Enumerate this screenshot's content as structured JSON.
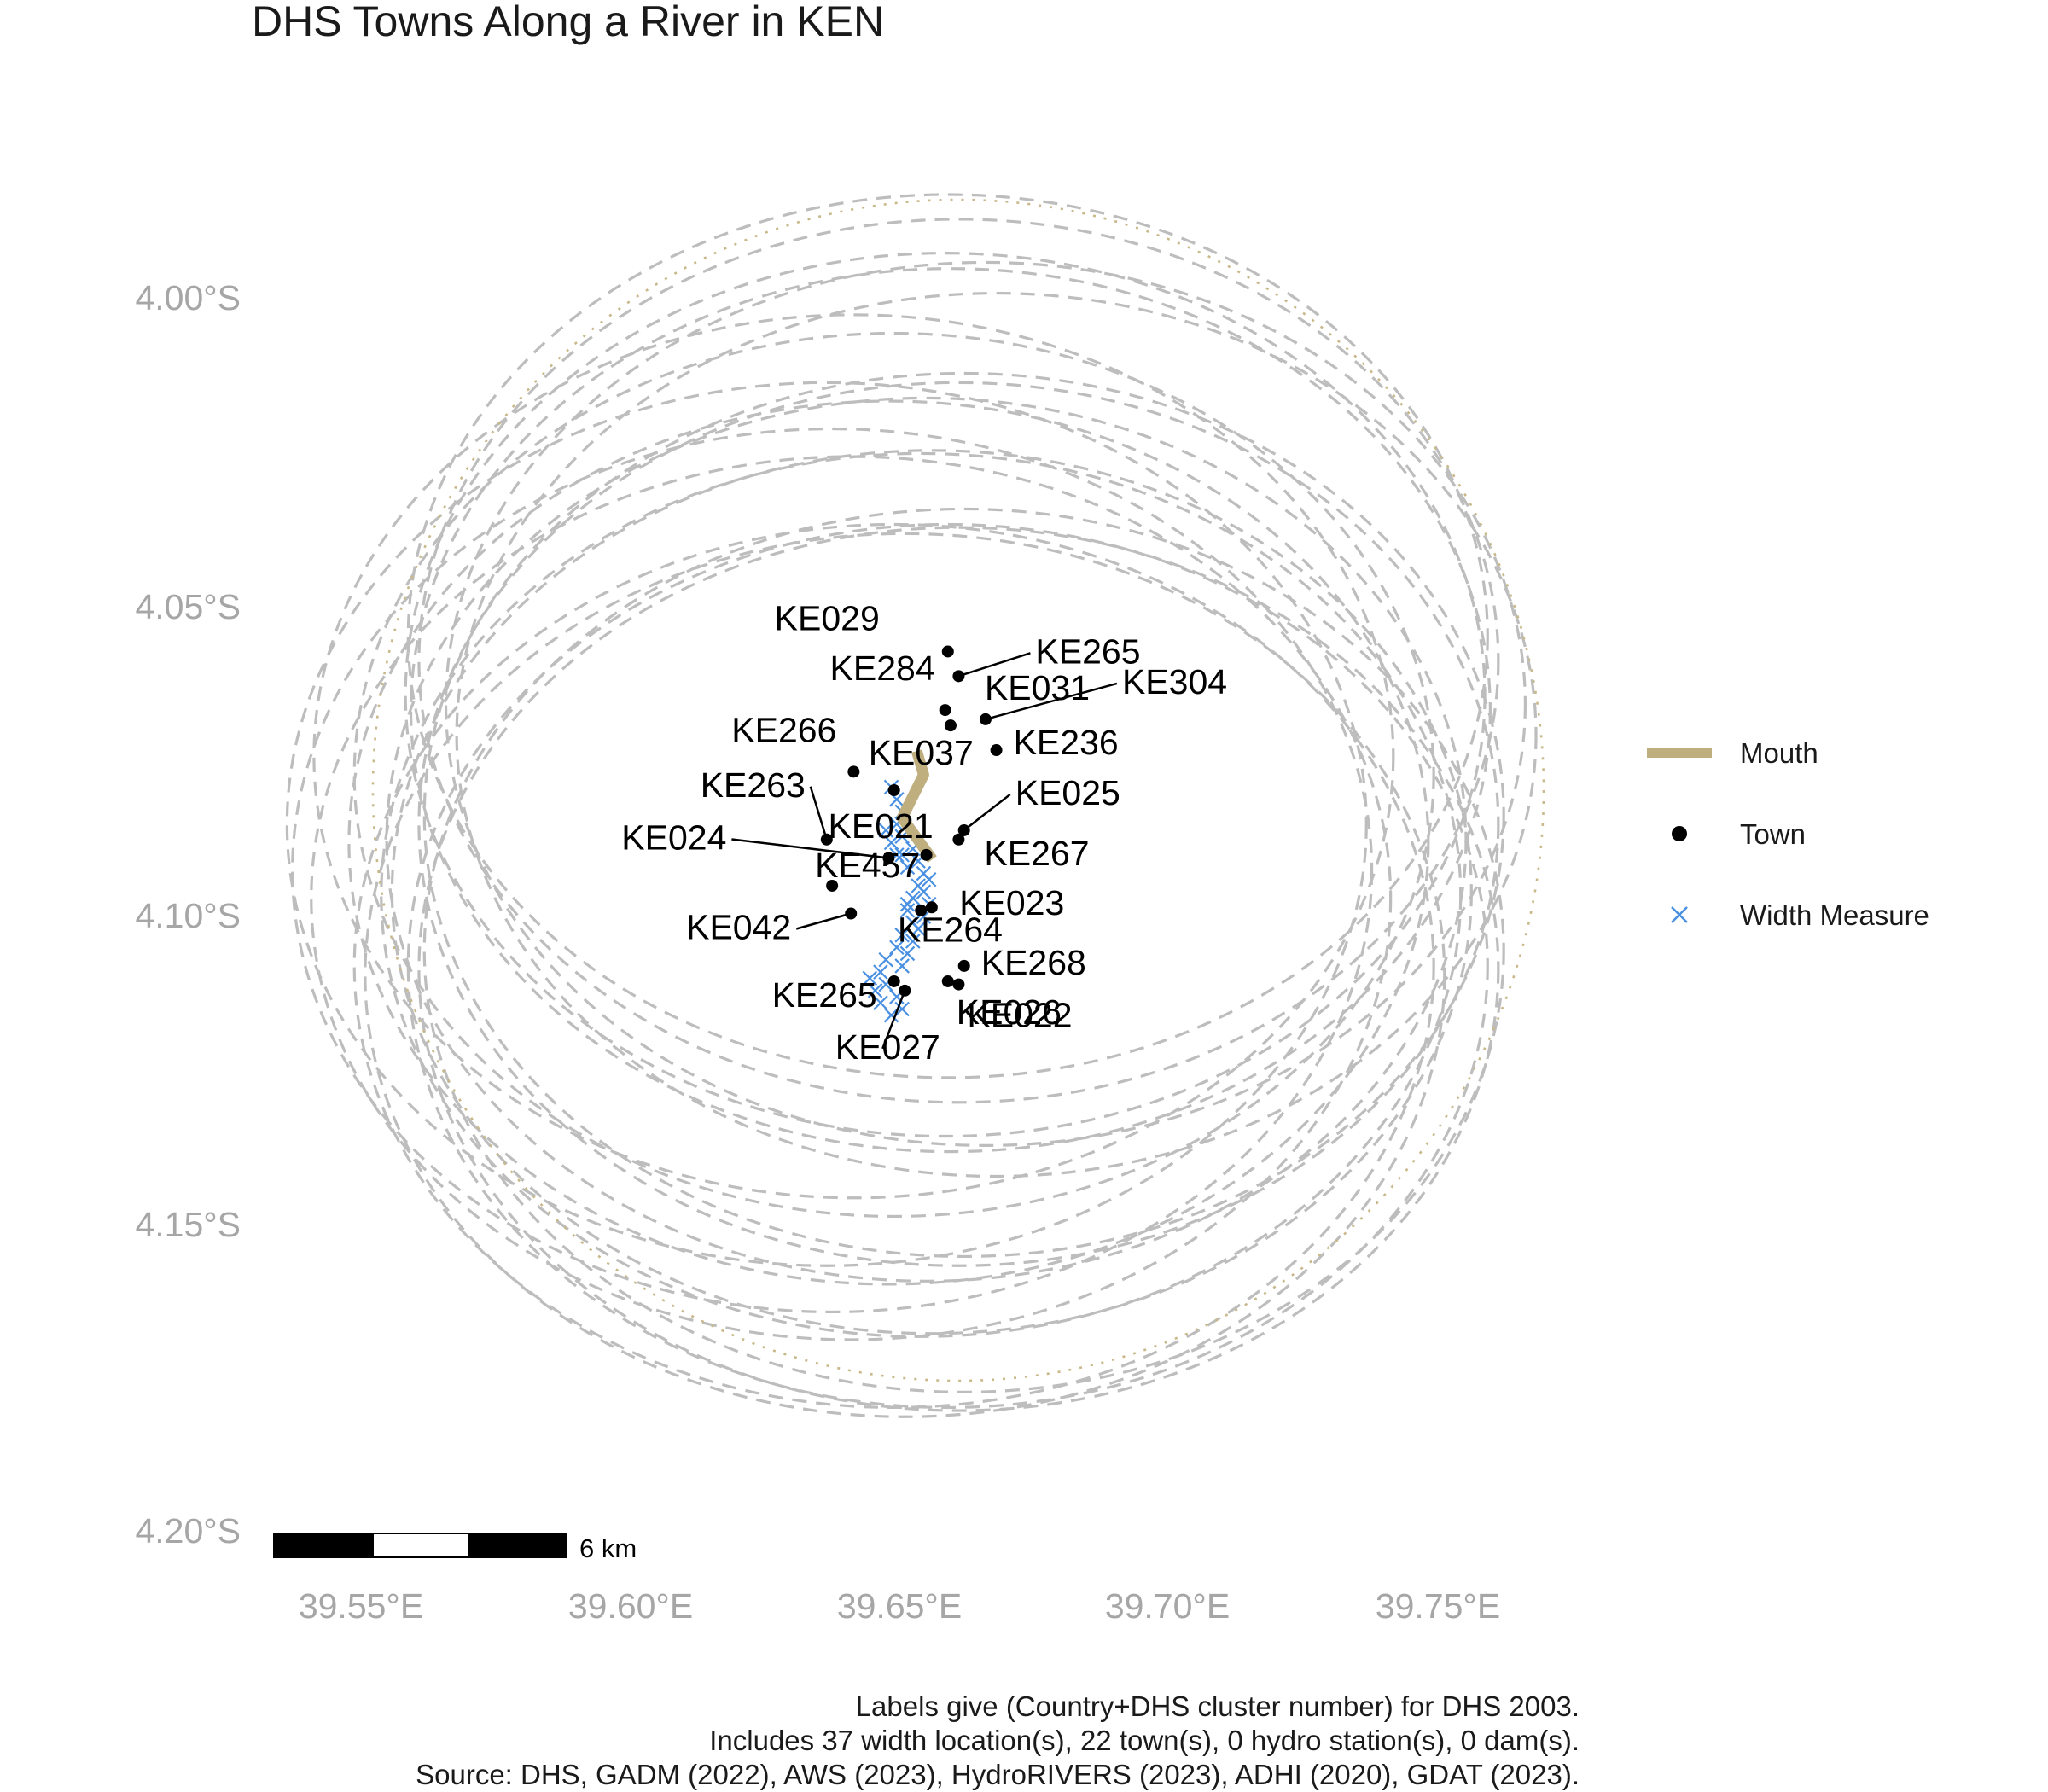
{
  "title": "DHS Towns Along a River in KEN",
  "axes": {
    "x_ticks": [
      "39.55°E",
      "39.60°E",
      "39.65°E",
      "39.70°E",
      "39.75°E"
    ],
    "y_ticks": [
      "4.00°S",
      "4.05°S",
      "4.10°S",
      "4.15°S",
      "4.20°S"
    ]
  },
  "legend": {
    "items": [
      {
        "label": "Mouth",
        "symbol": "thick-line",
        "color": "#bfae7e"
      },
      {
        "label": "Town",
        "symbol": "dot",
        "color": "#000000"
      },
      {
        "label": "Width Measure",
        "symbol": "x-cross",
        "color": "#4a90e2"
      }
    ]
  },
  "scale_bar": {
    "label": "6 km"
  },
  "caption": [
    "Labels give (Country+DHS cluster number) for DHS 2003.",
    "Includes 37 width location(s), 22 town(s), 0 hydro station(s), 0 dam(s).",
    "Source: DHS, GADM (2022), AWS (2023), HydroRIVERS (2023), ADHI (2020), GDAT (2023)."
  ],
  "colors": {
    "mouth": "#bfae7e",
    "town": "#000000",
    "width_measure": "#4a90e2",
    "buffer_ring": "#bdbdbd",
    "axis_text": "#a6a6a6"
  },
  "map_data": {
    "x_range": [
      39.52,
      39.79
    ],
    "y_range": [
      -4.205,
      -3.995
    ],
    "towns": [
      {
        "label": "KE029",
        "lon": 39.659,
        "lat": -4.0575
      },
      {
        "label": "KE265",
        "lon": 39.661,
        "lat": -4.0615
      },
      {
        "label": "KE284",
        "lon": 39.6585,
        "lat": -4.067
      },
      {
        "label": "KE031",
        "lon": 39.6595,
        "lat": -4.0695
      },
      {
        "label": "KE304",
        "lon": 39.666,
        "lat": -4.0685
      },
      {
        "label": "KE236",
        "lon": 39.668,
        "lat": -4.0735
      },
      {
        "label": "KE266",
        "lon": 39.6415,
        "lat": -4.077
      },
      {
        "label": "KE037",
        "lon": 39.649,
        "lat": -4.08
      },
      {
        "label": "KE025",
        "lon": 39.662,
        "lat": -4.0865
      },
      {
        "label": "KE263",
        "lon": 39.6365,
        "lat": -4.088
      },
      {
        "label": "KE267",
        "lon": 39.661,
        "lat": -4.088
      },
      {
        "label": "KE021",
        "lon": 39.655,
        "lat": -4.0905
      },
      {
        "label": "KE024",
        "lon": 39.648,
        "lat": -4.091
      },
      {
        "label": "KE457",
        "lon": 39.6375,
        "lat": -4.0955
      },
      {
        "label": "KE042",
        "lon": 39.641,
        "lat": -4.1
      },
      {
        "label": "KE023",
        "lon": 39.654,
        "lat": -4.0995
      },
      {
        "label": "KE264",
        "lon": 39.656,
        "lat": -4.099
      },
      {
        "label": "KE268",
        "lon": 39.662,
        "lat": -4.1085
      },
      {
        "label": "KE026",
        "lon": 39.659,
        "lat": -4.111
      },
      {
        "label": "KE265",
        "lon": 39.649,
        "lat": -4.111
      },
      {
        "label": "KE022",
        "lon": 39.661,
        "lat": -4.1115
      },
      {
        "label": "KE027",
        "lon": 39.651,
        "lat": -4.1125
      }
    ],
    "mouth_path": [
      {
        "lon": 39.6535,
        "lat": -4.0745
      },
      {
        "lon": 39.6545,
        "lat": -4.0775
      },
      {
        "lon": 39.6505,
        "lat": -4.0845
      },
      {
        "lon": 39.6555,
        "lat": -4.0905
      }
    ],
    "width_measures": [
      {
        "lon": 39.6485,
        "lat": -4.0795
      },
      {
        "lon": 39.6495,
        "lat": -4.0815
      },
      {
        "lon": 39.6505,
        "lat": -4.0835
      },
      {
        "lon": 39.6495,
        "lat": -4.0855
      },
      {
        "lon": 39.6505,
        "lat": -4.0875
      },
      {
        "lon": 39.6525,
        "lat": -4.0895
      },
      {
        "lon": 39.6535,
        "lat": -4.0915
      },
      {
        "lon": 39.6545,
        "lat": -4.0935
      },
      {
        "lon": 39.6535,
        "lat": -4.0955
      },
      {
        "lon": 39.6525,
        "lat": -4.0975
      },
      {
        "lon": 39.6515,
        "lat": -4.0995
      },
      {
        "lon": 39.6525,
        "lat": -4.1015
      },
      {
        "lon": 39.6505,
        "lat": -4.1035
      },
      {
        "lon": 39.6495,
        "lat": -4.1055
      },
      {
        "lon": 39.6475,
        "lat": -4.1075
      },
      {
        "lon": 39.6465,
        "lat": -4.1095
      },
      {
        "lon": 39.6475,
        "lat": -4.1115
      },
      {
        "lon": 39.6495,
        "lat": -4.1135
      },
      {
        "lon": 39.6505,
        "lat": -4.1155
      },
      {
        "lon": 39.6485,
        "lat": -4.1165
      },
      {
        "lon": 39.6465,
        "lat": -4.1145
      },
      {
        "lon": 39.6455,
        "lat": -4.1125
      },
      {
        "lon": 39.6445,
        "lat": -4.1105
      },
      {
        "lon": 39.6505,
        "lat": -4.1085
      },
      {
        "lon": 39.6515,
        "lat": -4.1065
      },
      {
        "lon": 39.6525,
        "lat": -4.1045
      },
      {
        "lon": 39.6535,
        "lat": -4.1025
      },
      {
        "lon": 39.6545,
        "lat": -4.1005
      },
      {
        "lon": 39.6555,
        "lat": -4.0985
      },
      {
        "lon": 39.6545,
        "lat": -4.0965
      },
      {
        "lon": 39.6555,
        "lat": -4.0945
      },
      {
        "lon": 39.6515,
        "lat": -4.0925
      },
      {
        "lon": 39.6505,
        "lat": -4.0905
      },
      {
        "lon": 39.6485,
        "lat": -4.0885
      },
      {
        "lon": 39.6475,
        "lat": -4.0865
      },
      {
        "lon": 39.6495,
        "lat": -4.0905
      },
      {
        "lon": 39.6515,
        "lat": -4.0985
      }
    ]
  }
}
